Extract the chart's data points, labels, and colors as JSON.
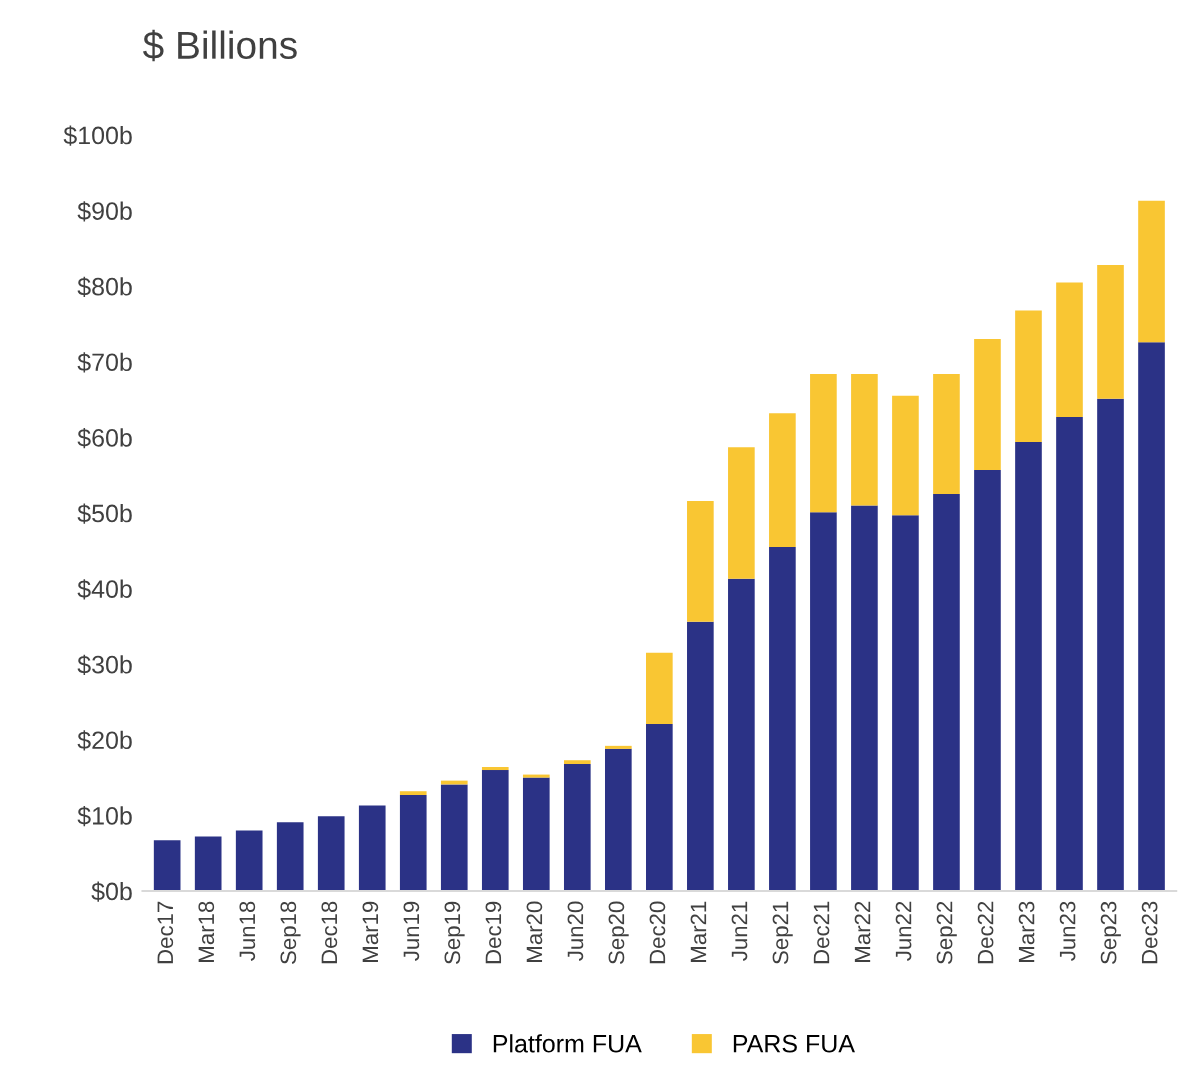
{
  "chart_data": {
    "type": "bar",
    "title": "$ Billions",
    "stacked": true,
    "categories": [
      "Dec17",
      "Mar18",
      "Jun18",
      "Sep18",
      "Dec18",
      "Mar19",
      "Jun19",
      "Sep19",
      "Dec19",
      "Mar20",
      "Jun20",
      "Sep20",
      "Dec20",
      "Mar21",
      "Jun21",
      "Sep21",
      "Dec21",
      "Mar22",
      "Jun22",
      "Sep22",
      "Dec22",
      "Mar23",
      "Jun23",
      "Sep23",
      "Dec23"
    ],
    "series": [
      {
        "name": "Platform FUA",
        "color": "#2b3286",
        "values": [
          6.7,
          7.2,
          8.0,
          9.1,
          9.9,
          11.3,
          12.7,
          14.1,
          16.0,
          15.0,
          16.8,
          18.8,
          22.1,
          35.6,
          41.3,
          45.5,
          50.1,
          51.0,
          49.7,
          52.5,
          55.7,
          59.4,
          62.7,
          65.1,
          72.6
        ]
      },
      {
        "name": "PARS FUA",
        "color": "#f9c633",
        "values": [
          0,
          0,
          0,
          0,
          0,
          0,
          0.5,
          0.5,
          0.4,
          0.4,
          0.5,
          0.4,
          9.4,
          16.0,
          17.4,
          17.7,
          18.3,
          17.4,
          15.8,
          15.9,
          17.3,
          17.4,
          17.8,
          17.7,
          18.7
        ]
      }
    ],
    "ylim": [
      0,
      100
    ],
    "yticks": [
      {
        "value": 0,
        "label": "$0b"
      },
      {
        "value": 10,
        "label": "$10b"
      },
      {
        "value": 20,
        "label": "$20b"
      },
      {
        "value": 30,
        "label": "$30b"
      },
      {
        "value": 40,
        "label": "$40b"
      },
      {
        "value": 50,
        "label": "$50b"
      },
      {
        "value": 60,
        "label": "$60b"
      },
      {
        "value": 70,
        "label": "$70b"
      },
      {
        "value": 80,
        "label": "$80b"
      },
      {
        "value": 90,
        "label": "$90b"
      },
      {
        "value": 100,
        "label": "$100b"
      }
    ],
    "grid": false,
    "legend": "bottom"
  }
}
